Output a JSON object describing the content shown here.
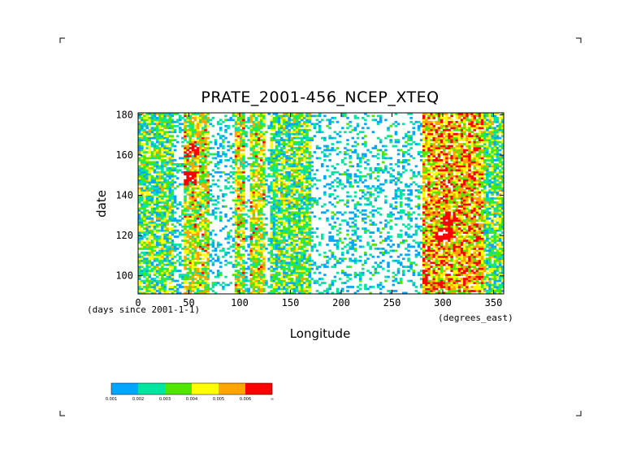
{
  "chart_data": {
    "type": "heatmap",
    "title": "PRATE_2001-456_NCEP_XTEQ",
    "xlabel": "Longitude",
    "ylabel": "date",
    "x_units_note": "(degrees_east)",
    "y_units_note": "(days since 2001-1-1)",
    "xlim": [
      0,
      360
    ],
    "ylim": [
      91,
      181
    ],
    "x_ticks": [
      "0",
      "50",
      "100",
      "150",
      "200",
      "250",
      "300",
      "350"
    ],
    "y_ticks": [
      "100",
      "120",
      "140",
      "160",
      "180"
    ],
    "grid": false,
    "colorbar": {
      "placement": "bottom-left",
      "levels": [
        "0.001",
        "0.002",
        "0.003",
        "0.004",
        "0.005",
        "0.006",
        "∞"
      ],
      "colors": [
        "#00a6ff",
        "#00e6a0",
        "#50e600",
        "#ffff00",
        "#ffa500",
        "#ff0000"
      ]
    },
    "bands": [
      {
        "lon_range": [
          0,
          35
        ],
        "level": "0.003"
      },
      {
        "lon_range": [
          45,
          70
        ],
        "level": "0.004"
      },
      {
        "lon_range": [
          95,
          105
        ],
        "level": "0.004"
      },
      {
        "lon_range": [
          110,
          125
        ],
        "level": "0.004"
      },
      {
        "lon_range": [
          130,
          170
        ],
        "level": "0.003"
      },
      {
        "lon_range": [
          280,
          340
        ],
        "level": "0.005"
      },
      {
        "lon_range": [
          340,
          360
        ],
        "level": "0.003"
      }
    ],
    "maxima": [
      {
        "lon": 52,
        "date": 162,
        "level": "0.006"
      },
      {
        "lon": 50,
        "date": 148,
        "level": "0.006"
      },
      {
        "lon": 305,
        "date": 128,
        "level": "0.006"
      },
      {
        "lon": 300,
        "date": 120,
        "level": "0.006"
      }
    ]
  }
}
